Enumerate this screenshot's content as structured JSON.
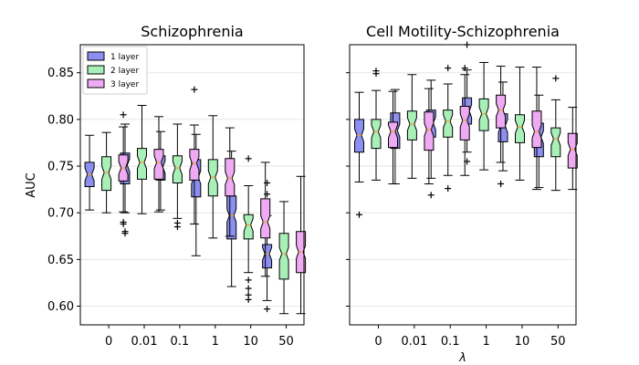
{
  "figure": {
    "xlabel": "λ"
  },
  "legend": [
    {
      "label": "1 layer",
      "color": "#8c8ff0"
    },
    {
      "label": "2 layer",
      "color": "#a8f0b8"
    },
    {
      "label": "3 layer",
      "color": "#eeaaf2"
    }
  ],
  "colors": {
    "median": "#f0a030",
    "edge": "#000000",
    "grid": "#e6e6e6"
  },
  "chart_data": [
    {
      "type": "box",
      "title": "Schizophrenia",
      "ylabel": "AUC",
      "ylim": [
        0.58,
        0.88
      ],
      "yticks": [
        0.6,
        0.65,
        0.7,
        0.75,
        0.8,
        0.85
      ],
      "ytick_labels": [
        "0.60",
        "0.65",
        "0.70",
        "0.75",
        "0.80",
        "0.85"
      ],
      "categories": [
        "0",
        "0.01",
        "0.1",
        "1",
        "10",
        "50"
      ],
      "legend_position": "top-left",
      "grid": "horizontal",
      "series": [
        {
          "name": "1 layer",
          "boxes": [
            {
              "whislo": 0.703,
              "q1": 0.728,
              "med": 0.741,
              "q3": 0.754,
              "whishi": 0.783,
              "fliers": []
            },
            {
              "whislo": 0.7,
              "q1": 0.731,
              "med": 0.751,
              "q3": 0.764,
              "whishi": 0.795,
              "fliers": [
                0.678,
                0.68
              ]
            },
            {
              "whislo": 0.703,
              "q1": 0.735,
              "med": 0.749,
              "q3": 0.761,
              "whishi": 0.787,
              "fliers": []
            },
            {
              "whislo": 0.654,
              "q1": 0.717,
              "med": 0.738,
              "q3": 0.757,
              "whishi": 0.784,
              "fliers": []
            },
            {
              "whislo": 0.621,
              "q1": 0.672,
              "med": 0.697,
              "q3": 0.718,
              "whishi": 0.766,
              "fliers": []
            },
            {
              "whislo": 0.606,
              "q1": 0.641,
              "med": 0.656,
              "q3": 0.666,
              "whishi": 0.697,
              "fliers": [
                0.597,
                0.72,
                0.732
              ]
            }
          ]
        },
        {
          "name": "2 layer",
          "boxes": [
            {
              "whislo": 0.7,
              "q1": 0.724,
              "med": 0.743,
              "q3": 0.76,
              "whishi": 0.786,
              "fliers": []
            },
            {
              "whislo": 0.699,
              "q1": 0.736,
              "med": 0.754,
              "q3": 0.769,
              "whishi": 0.815,
              "fliers": []
            },
            {
              "whislo": 0.694,
              "q1": 0.732,
              "med": 0.748,
              "q3": 0.761,
              "whishi": 0.795,
              "fliers": [
                0.685,
                0.689
              ]
            },
            {
              "whislo": 0.673,
              "q1": 0.718,
              "med": 0.738,
              "q3": 0.757,
              "whishi": 0.804,
              "fliers": []
            },
            {
              "whislo": 0.636,
              "q1": 0.672,
              "med": 0.687,
              "q3": 0.698,
              "whishi": 0.729,
              "fliers": [
                0.607,
                0.612,
                0.619,
                0.628,
                0.758
              ]
            },
            {
              "whislo": 0.592,
              "q1": 0.629,
              "med": 0.656,
              "q3": 0.678,
              "whishi": 0.712,
              "fliers": []
            }
          ]
        },
        {
          "name": "3 layer",
          "boxes": [
            {
              "whislo": 0.701,
              "q1": 0.734,
              "med": 0.748,
              "q3": 0.762,
              "whishi": 0.792,
              "fliers": [
                0.688,
                0.69,
                0.805
              ]
            },
            {
              "whislo": 0.701,
              "q1": 0.736,
              "med": 0.754,
              "q3": 0.768,
              "whishi": 0.803,
              "fliers": []
            },
            {
              "whislo": 0.688,
              "q1": 0.735,
              "med": 0.753,
              "q3": 0.768,
              "whishi": 0.794,
              "fliers": [
                0.832
              ]
            },
            {
              "whislo": 0.675,
              "q1": 0.718,
              "med": 0.737,
              "q3": 0.758,
              "whishi": 0.791,
              "fliers": []
            },
            {
              "whislo": 0.632,
              "q1": 0.673,
              "med": 0.69,
              "q3": 0.715,
              "whishi": 0.754,
              "fliers": []
            },
            {
              "whislo": 0.592,
              "q1": 0.636,
              "med": 0.658,
              "q3": 0.68,
              "whishi": 0.739,
              "fliers": []
            }
          ]
        }
      ]
    },
    {
      "type": "box",
      "title": "Cell Motility-Schizophrenia",
      "ylabel": "",
      "ylim": [
        0.58,
        0.88
      ],
      "yticks": [
        0.6,
        0.65,
        0.7,
        0.75,
        0.8,
        0.85
      ],
      "ytick_labels": [
        "",
        "",
        "",
        "",
        "",
        ""
      ],
      "categories": [
        "0",
        "0.01",
        "0.1",
        "1",
        "10",
        "50"
      ],
      "grid": "horizontal",
      "series": [
        {
          "name": "1 layer",
          "boxes": [
            {
              "whislo": 0.733,
              "q1": 0.765,
              "med": 0.783,
              "q3": 0.8,
              "whishi": 0.829,
              "fliers": [
                0.698
              ]
            },
            {
              "whislo": 0.731,
              "q1": 0.769,
              "med": 0.788,
              "q3": 0.807,
              "whishi": 0.832,
              "fliers": []
            },
            {
              "whislo": 0.737,
              "q1": 0.781,
              "med": 0.796,
              "q3": 0.81,
              "whishi": 0.842,
              "fliers": [
                0.719
              ]
            },
            {
              "whislo": 0.765,
              "q1": 0.795,
              "med": 0.809,
              "q3": 0.823,
              "whishi": 0.853,
              "fliers": [
                0.755,
                0.88
              ]
            },
            {
              "whislo": 0.745,
              "q1": 0.776,
              "med": 0.793,
              "q3": 0.806,
              "whishi": 0.84,
              "fliers": []
            },
            {
              "whislo": 0.727,
              "q1": 0.76,
              "med": 0.781,
              "q3": 0.796,
              "whishi": 0.826,
              "fliers": []
            }
          ]
        },
        {
          "name": "2 layer",
          "boxes": [
            {
              "whislo": 0.735,
              "q1": 0.769,
              "med": 0.787,
              "q3": 0.8,
              "whishi": 0.831,
              "fliers": [
                0.849,
                0.852
              ]
            },
            {
              "whislo": 0.737,
              "q1": 0.778,
              "med": 0.795,
              "q3": 0.809,
              "whishi": 0.848,
              "fliers": []
            },
            {
              "whislo": 0.74,
              "q1": 0.781,
              "med": 0.798,
              "q3": 0.81,
              "whishi": 0.838,
              "fliers": [
                0.726,
                0.855
              ]
            },
            {
              "whislo": 0.746,
              "q1": 0.788,
              "med": 0.806,
              "q3": 0.822,
              "whishi": 0.861,
              "fliers": []
            },
            {
              "whislo": 0.735,
              "q1": 0.775,
              "med": 0.792,
              "q3": 0.805,
              "whishi": 0.856,
              "fliers": []
            },
            {
              "whislo": 0.724,
              "q1": 0.76,
              "med": 0.779,
              "q3": 0.791,
              "whishi": 0.821,
              "fliers": [
                0.844
              ]
            }
          ]
        },
        {
          "name": "3 layer",
          "boxes": [
            {
              "whislo": 0.731,
              "q1": 0.77,
              "med": 0.787,
              "q3": 0.797,
              "whishi": 0.83,
              "fliers": []
            },
            {
              "whislo": 0.731,
              "q1": 0.767,
              "med": 0.789,
              "q3": 0.808,
              "whishi": 0.833,
              "fliers": []
            },
            {
              "whislo": 0.74,
              "q1": 0.778,
              "med": 0.799,
              "q3": 0.814,
              "whishi": 0.848,
              "fliers": [
                0.855
              ]
            },
            {
              "whislo": 0.754,
              "q1": 0.791,
              "med": 0.81,
              "q3": 0.826,
              "whishi": 0.857,
              "fliers": [
                0.731
              ]
            },
            {
              "whislo": 0.725,
              "q1": 0.77,
              "med": 0.787,
              "q3": 0.809,
              "whishi": 0.856,
              "fliers": []
            },
            {
              "whislo": 0.725,
              "q1": 0.748,
              "med": 0.768,
              "q3": 0.785,
              "whishi": 0.813,
              "fliers": []
            }
          ]
        }
      ]
    }
  ]
}
